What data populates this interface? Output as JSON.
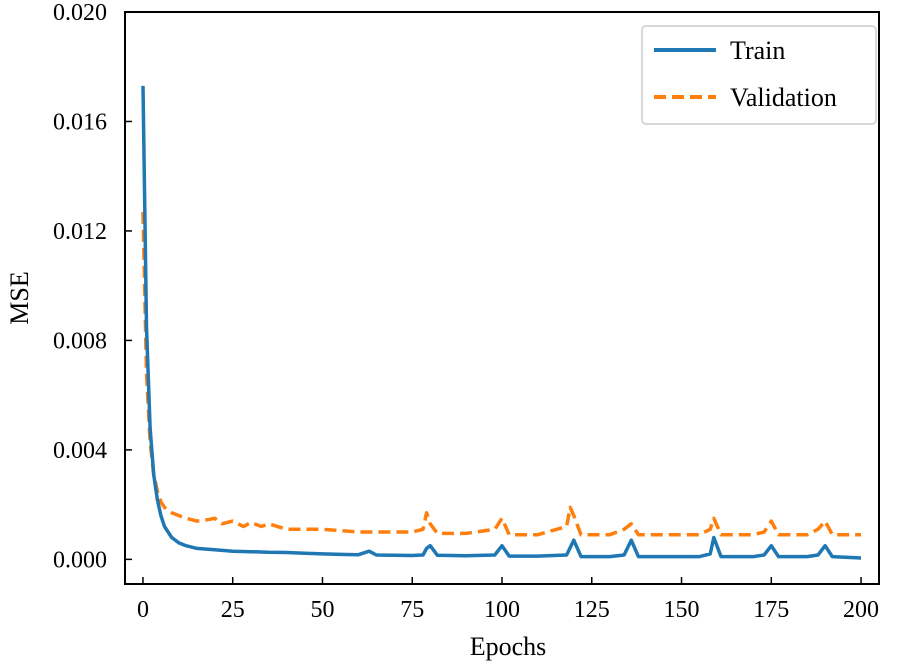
{
  "chart_data": {
    "type": "line",
    "title": "",
    "xlabel": "Epochs",
    "ylabel": "MSE",
    "xlim": [
      -5,
      205
    ],
    "ylim": [
      -0.0009,
      0.02
    ],
    "xticks": [
      0,
      25,
      50,
      75,
      100,
      125,
      150,
      175,
      200
    ],
    "xtick_labels": [
      "0",
      "25",
      "50",
      "75",
      "100",
      "125",
      "150",
      "175",
      "200"
    ],
    "yticks": [
      0.0,
      0.004,
      0.008,
      0.012,
      0.016,
      0.02
    ],
    "ytick_labels": [
      "0.000",
      "0.004",
      "0.008",
      "0.012",
      "0.016",
      "0.020"
    ],
    "grid": false,
    "legend": {
      "position": "top-right",
      "entries": [
        "Train",
        "Validation"
      ]
    },
    "series": [
      {
        "name": "Train",
        "color": "#1f77b4",
        "linestyle": "solid",
        "x": [
          0,
          1,
          2,
          3,
          4,
          5,
          6,
          7,
          8,
          10,
          12,
          15,
          20,
          25,
          30,
          35,
          40,
          45,
          50,
          55,
          60,
          63,
          65,
          70,
          75,
          78,
          79,
          80,
          82,
          90,
          98,
          100,
          102,
          110,
          118,
          120,
          122,
          130,
          134,
          136,
          138,
          145,
          155,
          158,
          159,
          161,
          170,
          173,
          175,
          177,
          185,
          188,
          190,
          192,
          200
        ],
        "values": [
          0.0173,
          0.0085,
          0.0048,
          0.0031,
          0.0022,
          0.0016,
          0.0012,
          0.001,
          0.0008,
          0.0006,
          0.0005,
          0.0004,
          0.00035,
          0.0003,
          0.00028,
          0.00026,
          0.00025,
          0.00022,
          0.0002,
          0.00018,
          0.00017,
          0.0003,
          0.00016,
          0.00015,
          0.00014,
          0.00016,
          0.0004,
          0.0005,
          0.00015,
          0.00013,
          0.00016,
          0.0005,
          0.00012,
          0.00012,
          0.00016,
          0.0007,
          0.0001,
          0.0001,
          0.00016,
          0.0007,
          0.0001,
          0.0001,
          0.0001,
          0.0002,
          0.0008,
          0.0001,
          0.0001,
          0.00016,
          0.0005,
          0.0001,
          0.0001,
          0.00016,
          0.0005,
          0.0001,
          5e-05
        ]
      },
      {
        "name": "Validation",
        "color": "#ff7f0e",
        "linestyle": "dashed",
        "x": [
          0,
          1,
          2,
          3,
          4,
          5,
          6,
          7,
          8,
          10,
          12,
          15,
          18,
          20,
          22,
          25,
          28,
          30,
          33,
          35,
          40,
          45,
          50,
          55,
          60,
          65,
          70,
          75,
          78,
          79,
          80,
          82,
          90,
          98,
          100,
          102,
          110,
          118,
          119,
          120,
          122,
          130,
          134,
          136,
          138,
          145,
          155,
          158,
          159,
          161,
          170,
          173,
          175,
          177,
          185,
          188,
          190,
          192,
          200
        ],
        "values": [
          0.0127,
          0.0068,
          0.0043,
          0.0031,
          0.0025,
          0.0021,
          0.0019,
          0.0018,
          0.0017,
          0.0016,
          0.0015,
          0.0014,
          0.00145,
          0.0015,
          0.0013,
          0.0014,
          0.0012,
          0.00135,
          0.0012,
          0.0013,
          0.0011,
          0.0011,
          0.0011,
          0.00105,
          0.001,
          0.001,
          0.001,
          0.001,
          0.0011,
          0.0017,
          0.0013,
          0.00095,
          0.00095,
          0.0011,
          0.0015,
          0.0009,
          0.0009,
          0.0012,
          0.0019,
          0.0016,
          0.0009,
          0.0009,
          0.0011,
          0.0013,
          0.0009,
          0.0009,
          0.0009,
          0.0011,
          0.0015,
          0.0009,
          0.0009,
          0.001,
          0.0014,
          0.0009,
          0.0009,
          0.0011,
          0.0014,
          0.0009,
          0.0009
        ]
      }
    ]
  }
}
